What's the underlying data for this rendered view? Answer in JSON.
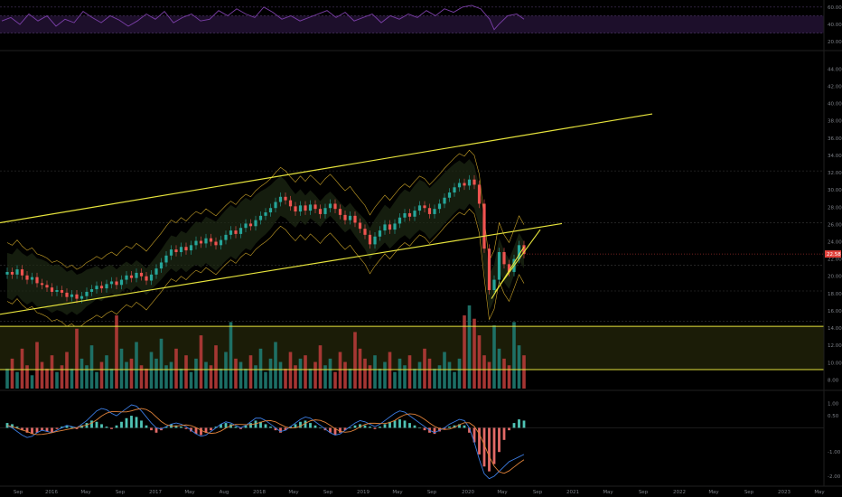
{
  "chart_data": [
    {
      "panel": "rsi",
      "type": "line",
      "right_axis_ticks": [
        "60.00",
        "40.00",
        "20.00"
      ],
      "yticks": [
        60,
        40,
        20
      ],
      "ylim": [
        14,
        64
      ],
      "band": [
        30,
        50
      ],
      "x": [
        0,
        10,
        20,
        30,
        40,
        50,
        60,
        70,
        80,
        90,
        100,
        110,
        120,
        130,
        140,
        150,
        160,
        170,
        180,
        190,
        200,
        210,
        220,
        230,
        240,
        250,
        260,
        270,
        280,
        290,
        300,
        310,
        320,
        330,
        340,
        350,
        360,
        370,
        380,
        390,
        400,
        410,
        420,
        430,
        440,
        450,
        460,
        470,
        480,
        490,
        500,
        510,
        520,
        530,
        540,
        545,
        550,
        560,
        570,
        578
      ],
      "values": [
        44,
        48,
        40,
        52,
        44,
        50,
        38,
        46,
        42,
        55,
        48,
        42,
        50,
        45,
        38,
        44,
        52,
        46,
        55,
        42,
        48,
        52,
        44,
        46,
        56,
        50,
        58,
        52,
        48,
        60,
        54,
        46,
        50,
        44,
        48,
        52,
        56,
        48,
        54,
        44,
        48,
        52,
        42,
        50,
        46,
        52,
        48,
        56,
        50,
        58,
        54,
        60,
        62,
        58,
        46,
        34,
        40,
        50,
        52,
        46
      ],
      "color": "#7b3fa8"
    },
    {
      "panel": "price",
      "type": "candlestick",
      "right_axis_ticks": [
        "44.00",
        "42.00",
        "40.00",
        "38.00",
        "36.00",
        "34.00",
        "32.00",
        "30.00",
        "28.00",
        "26.00",
        "24.00",
        "22.00",
        "20.00",
        "18.00",
        "16.00",
        "14.00",
        "12.00",
        "10.00",
        "8.00"
      ],
      "yticks": [
        44,
        42,
        40,
        38,
        36,
        34,
        32,
        30,
        28,
        26,
        24,
        22,
        20,
        18,
        16,
        14,
        12,
        10,
        8
      ],
      "last_price_label": "22.58",
      "last_price": 22.58,
      "ylim": [
        7,
        45.5
      ],
      "close": [
        20.5,
        20.2,
        20.8,
        20.1,
        19.6,
        19.9,
        19.2,
        19.0,
        18.7,
        18.2,
        18.4,
        18.1,
        17.6,
        17.9,
        17.4,
        17.7,
        18.2,
        18.5,
        18.9,
        18.6,
        19.1,
        19.4,
        19.0,
        19.6,
        20.1,
        19.8,
        20.4,
        20.0,
        19.5,
        20.2,
        20.9,
        21.6,
        22.4,
        23.1,
        22.8,
        23.4,
        23.0,
        23.6,
        24.1,
        23.8,
        24.4,
        24.0,
        23.6,
        24.2,
        24.8,
        25.3,
        24.9,
        25.6,
        26.1,
        25.8,
        26.5,
        27.0,
        27.4,
        27.9,
        28.6,
        29.2,
        28.8,
        28.1,
        27.5,
        28.2,
        27.6,
        28.3,
        27.8,
        27.2,
        27.9,
        28.4,
        27.8,
        27.1,
        26.5,
        27.0,
        26.2,
        25.5,
        24.8,
        23.7,
        24.6,
        25.3,
        26.0,
        25.4,
        26.1,
        26.8,
        27.3,
        26.9,
        27.6,
        28.2,
        27.9,
        27.2,
        27.8,
        28.4,
        29.1,
        29.7,
        30.3,
        30.8,
        30.5,
        31.2,
        30.6,
        28.4,
        23.2,
        18.4,
        19.6,
        22.8,
        21.4,
        20.5,
        22.0,
        23.6,
        22.58
      ],
      "series": [
        {
          "name": "",
          "kind": "upper-envelope",
          "color": "#c9a227"
        },
        {
          "name": "",
          "kind": "lower-envelope",
          "color": "#c9a227"
        }
      ]
    },
    {
      "panel": "volume",
      "type": "bar",
      "values": [
        6,
        9,
        5,
        12,
        7,
        4,
        14,
        8,
        6,
        10,
        5,
        7,
        11,
        6,
        18,
        9,
        7,
        13,
        5,
        8,
        10,
        6,
        22,
        12,
        8,
        9,
        14,
        7,
        6,
        11,
        9,
        15,
        7,
        8,
        12,
        6,
        10,
        5,
        9,
        16,
        8,
        7,
        13,
        6,
        11,
        20,
        9,
        8,
        6,
        10,
        7,
        12,
        5,
        9,
        14,
        8,
        6,
        11,
        7,
        9,
        10,
        6,
        8,
        13,
        7,
        9,
        5,
        11,
        8,
        6,
        17,
        12,
        9,
        7,
        10,
        6,
        8,
        11,
        5,
        9,
        7,
        10,
        6,
        8,
        12,
        9,
        6,
        7,
        11,
        8,
        5,
        9,
        22,
        25,
        21,
        16,
        10,
        8,
        19,
        12,
        9,
        7,
        20,
        13,
        10
      ],
      "threshold_lines_price": [
        14.2,
        9.2
      ]
    },
    {
      "panel": "macd",
      "type": "bar",
      "right_axis_ticks": [
        "1.00",
        "0.50",
        "-1.00",
        "-2.00"
      ],
      "yticks": [
        1,
        0.5,
        -1,
        -2
      ],
      "ylim": [
        -2.3,
        1.4
      ],
      "histogram": [
        0.2,
        0.15,
        0.05,
        -0.1,
        -0.2,
        -0.25,
        -0.2,
        -0.1,
        -0.15,
        -0.2,
        -0.05,
        0.05,
        0.1,
        0.05,
        -0.05,
        0.1,
        0.2,
        0.3,
        0.25,
        0.15,
        0.05,
        -0.05,
        0.1,
        0.25,
        0.4,
        0.5,
        0.45,
        0.3,
        0.1,
        -0.1,
        -0.2,
        -0.1,
        0.05,
        0.15,
        0.1,
        0.05,
        -0.05,
        -0.15,
        -0.25,
        -0.3,
        -0.2,
        -0.1,
        0.05,
        0.15,
        0.2,
        0.15,
        0.05,
        -0.05,
        0.1,
        0.2,
        0.3,
        0.25,
        0.15,
        0.05,
        -0.1,
        -0.2,
        -0.1,
        0.05,
        0.15,
        0.25,
        0.3,
        0.2,
        0.1,
        0.0,
        -0.1,
        -0.2,
        -0.3,
        -0.2,
        -0.1,
        0.0,
        0.1,
        0.15,
        0.1,
        0.05,
        -0.05,
        0.05,
        0.15,
        0.25,
        0.3,
        0.35,
        0.3,
        0.2,
        0.1,
        0.0,
        -0.1,
        -0.2,
        -0.25,
        -0.15,
        -0.05,
        0.05,
        0.1,
        0.15,
        0.1,
        -0.2,
        -0.6,
        -1.1,
        -1.6,
        -1.8,
        -1.5,
        -1.0,
        -0.5,
        -0.1,
        0.2,
        0.35,
        0.3
      ],
      "macd": [
        0.1,
        0.0,
        -0.15,
        -0.3,
        -0.4,
        -0.35,
        -0.2,
        -0.1,
        -0.15,
        -0.2,
        -0.1,
        0.0,
        0.1,
        0.05,
        0.0,
        0.15,
        0.3,
        0.5,
        0.7,
        0.8,
        0.75,
        0.6,
        0.5,
        0.65,
        0.8,
        0.95,
        0.9,
        0.7,
        0.45,
        0.2,
        0.0,
        -0.05,
        0.05,
        0.15,
        0.2,
        0.15,
        0.05,
        -0.1,
        -0.25,
        -0.35,
        -0.3,
        -0.15,
        0.0,
        0.15,
        0.25,
        0.2,
        0.1,
        0.0,
        0.1,
        0.25,
        0.4,
        0.4,
        0.3,
        0.15,
        0.0,
        -0.15,
        -0.1,
        0.05,
        0.2,
        0.35,
        0.45,
        0.4,
        0.25,
        0.1,
        -0.05,
        -0.2,
        -0.3,
        -0.25,
        -0.1,
        0.05,
        0.2,
        0.3,
        0.25,
        0.15,
        0.05,
        0.15,
        0.3,
        0.45,
        0.6,
        0.7,
        0.65,
        0.5,
        0.35,
        0.2,
        0.05,
        -0.1,
        -0.2,
        -0.1,
        0.0,
        0.15,
        0.25,
        0.35,
        0.3,
        0.0,
        -0.6,
        -1.3,
        -1.9,
        -2.1,
        -2.0,
        -1.8,
        -1.6,
        -1.4,
        -1.3,
        -1.2,
        -1.1
      ],
      "signal_color": "#e0823a",
      "macd_color": "#3b7be0"
    }
  ],
  "x_axis": {
    "tick_labels": [
      "Sep",
      "2016",
      "May",
      "Sep",
      "2017",
      "May",
      "Aug",
      "2018",
      "May",
      "Sep",
      "2019",
      "May",
      "Sep",
      "2020",
      "May",
      "Sep",
      "2021",
      "May",
      "Sep",
      "2022",
      "May",
      "Sep",
      "2023",
      "May"
    ],
    "tick_positions": [
      20,
      57,
      95,
      133,
      172,
      210,
      248,
      287,
      325,
      363,
      402,
      440,
      478,
      518,
      556,
      595,
      634,
      673,
      712,
      752,
      790,
      829,
      868,
      907
    ]
  },
  "drawings": {
    "channel_color": "#e6e33c",
    "channel_upper": [
      [
        0,
        26.2
      ],
      [
        722,
        38.8
      ]
    ],
    "channel_lower": [
      [
        0,
        15.6
      ],
      [
        622,
        26.1
      ]
    ],
    "wedge_upper": [
      [
        548,
        18.2
      ],
      [
        598,
        25.4
      ]
    ],
    "wedge_lower": [
      [
        544,
        17.4
      ],
      [
        580,
        23.4
      ]
    ],
    "horizontal_levels": [
      14.2,
      9.2
    ],
    "dotted_levels": [
      32.2,
      26.2,
      21.3,
      18.3,
      14.8
    ]
  },
  "colors": {
    "up": "#26a69a",
    "down": "#ef5350",
    "axis_text": "#7d8087",
    "grid": "#2a2a2a",
    "price_badge": "#e0423c",
    "rsi_band": "#1d0f2b",
    "zone_fill": "#1b1c07"
  }
}
